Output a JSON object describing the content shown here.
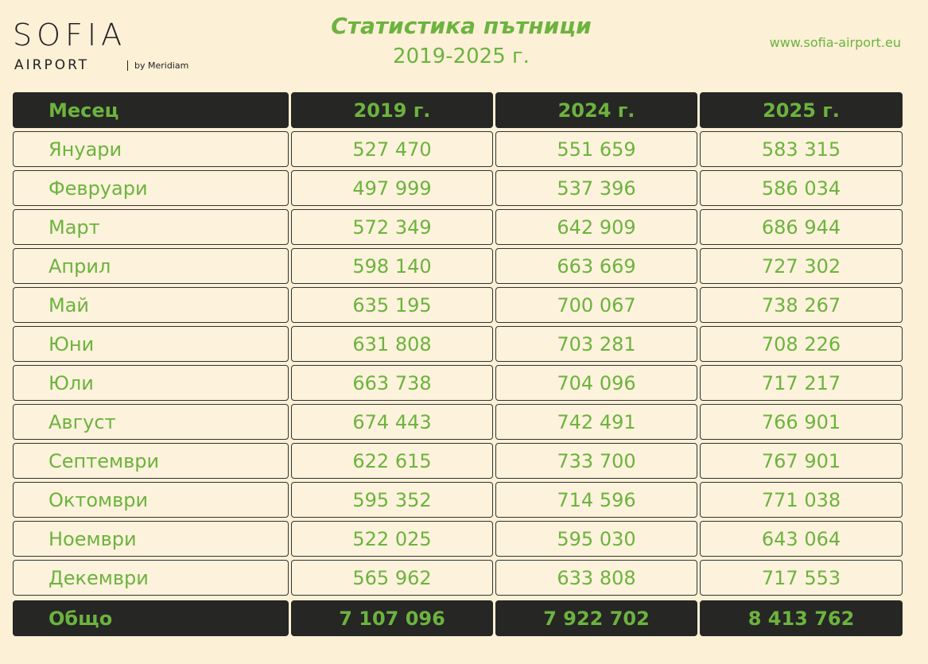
{
  "header": {
    "logo": {
      "name": "SOFIA",
      "sub": "AIRPORT",
      "by": "by Meridiam"
    },
    "title": "Статистика пътници",
    "subtitle": "2019-2025 г.",
    "url": "www.sofia-airport.eu"
  },
  "table": {
    "columns": [
      "Месец",
      "2019 г.",
      "2024 г.",
      "2025 г."
    ],
    "rows": [
      [
        "Януари",
        "527 470",
        "551 659",
        "583 315"
      ],
      [
        "Февруари",
        "497 999",
        "537 396",
        "586 034"
      ],
      [
        "Март",
        "572 349",
        "642 909",
        "686 944"
      ],
      [
        "Април",
        "598 140",
        "663 669",
        "727 302"
      ],
      [
        "Май",
        "635 195",
        "700 067",
        "738 267"
      ],
      [
        "Юни",
        "631 808",
        "703 281",
        "708 226"
      ],
      [
        "Юли",
        "663 738",
        "704 096",
        "717 217"
      ],
      [
        "Август",
        "674 443",
        "742 491",
        "766 901"
      ],
      [
        "Септември",
        "622 615",
        "733 700",
        "767 901"
      ],
      [
        "Октомври",
        "595 352",
        "714 596",
        "771 038"
      ],
      [
        "Ноември",
        "522 025",
        "595 030",
        "643 064"
      ],
      [
        "Декември",
        "565 962",
        "633 808",
        "717 553"
      ]
    ],
    "total": [
      "Общо",
      "7 107 096",
      "7 922 702",
      "8 413 762"
    ]
  }
}
